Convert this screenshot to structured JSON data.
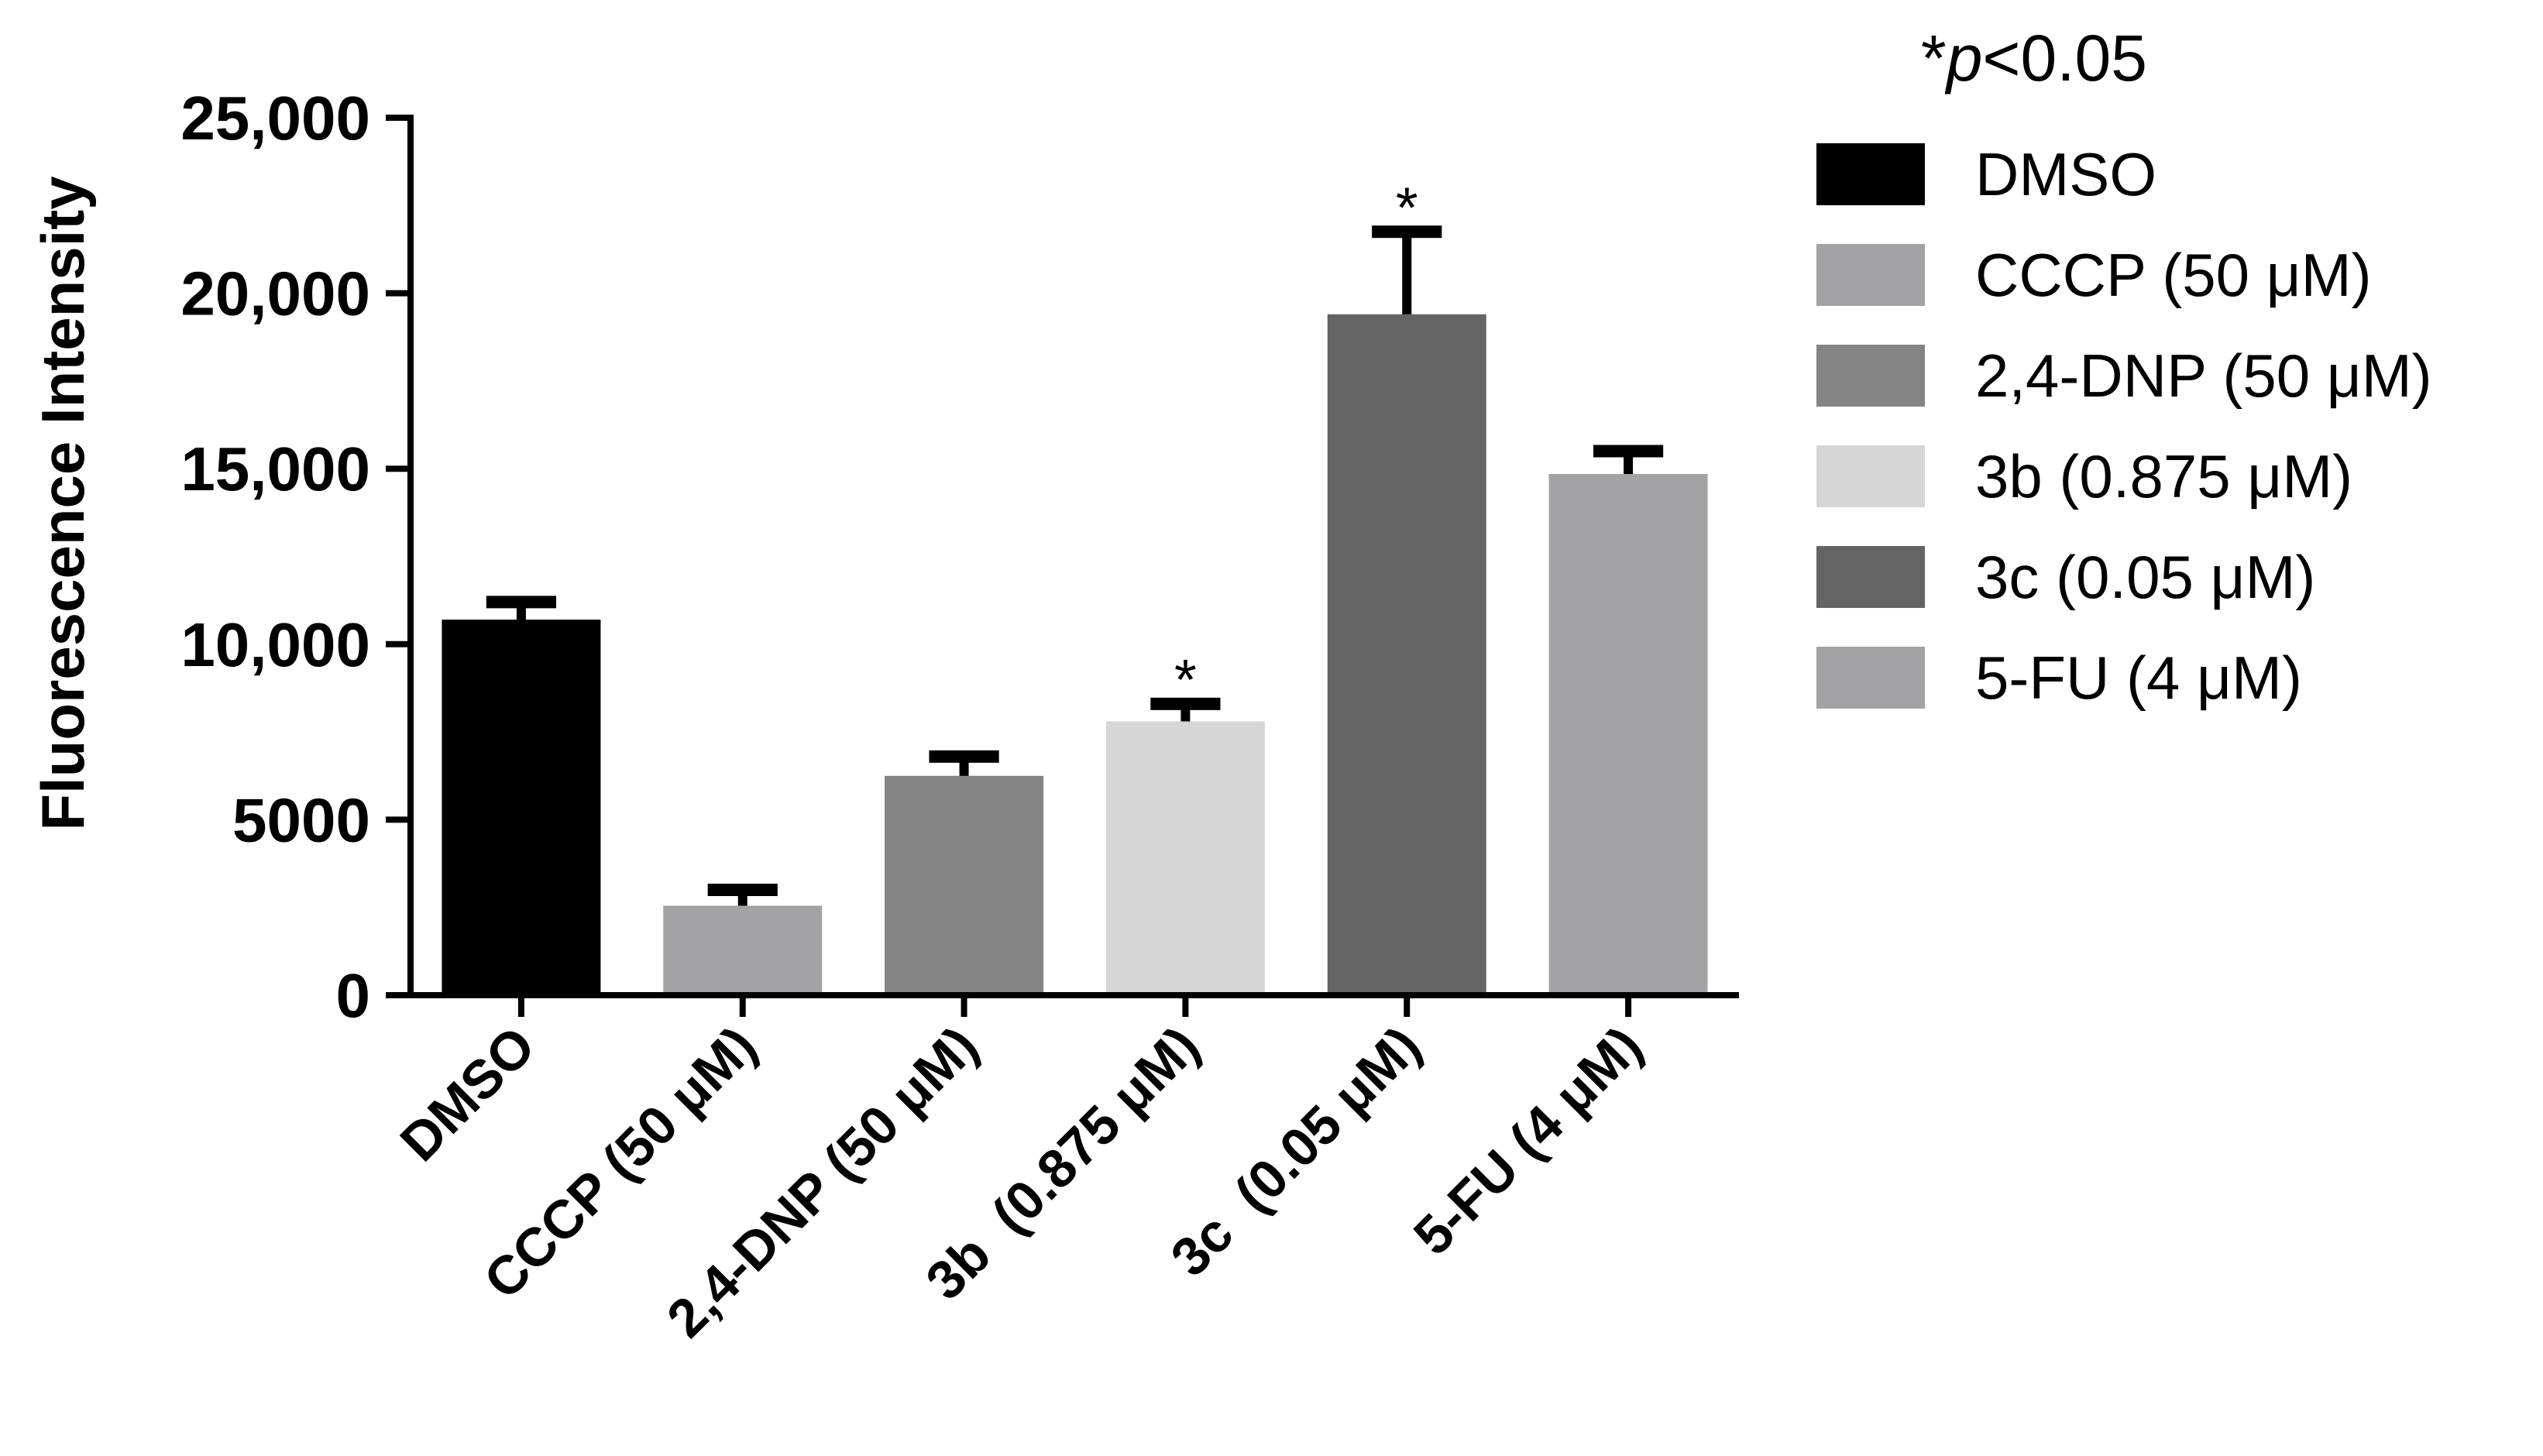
{
  "chart_data": {
    "type": "bar",
    "ylabel": "Fluorescence Intensity",
    "xlabel": "",
    "ylim": [
      0,
      25000
    ],
    "yticks": [
      0,
      5000,
      10000,
      15000,
      20000,
      25000
    ],
    "ytick_labels": [
      "0",
      "5000",
      "10,000",
      "15,000",
      "20,000",
      "25,000"
    ],
    "categories": [
      "DMSO",
      "CCCP (50 μM)",
      "2,4-DNP (50 μM)",
      "3b  (0.875 μM)",
      "3c  (0.05 μM)",
      "5-FU (4 μM)"
    ],
    "values": [
      10700,
      2550,
      6250,
      7800,
      19400,
      14850
    ],
    "errors": [
      500,
      450,
      550,
      500,
      2350,
      650
    ],
    "colors": [
      "#000000",
      "#a3a3a6",
      "#848484",
      "#d6d6d6",
      "#646464",
      "#a3a3a6"
    ],
    "significance": [
      "",
      "",
      "",
      "*",
      "*",
      ""
    ],
    "legend": {
      "placement": "right",
      "title_prefix": "*",
      "title_italic": "p",
      "title_suffix": "<0.05",
      "entries": [
        "DMSO",
        "CCCP (50 μM)",
        "2,4-DNP (50 μM)",
        "3b (0.875 μM)",
        "3c (0.05 μM)",
        "5-FU (4 μM)"
      ]
    },
    "grid": false
  }
}
